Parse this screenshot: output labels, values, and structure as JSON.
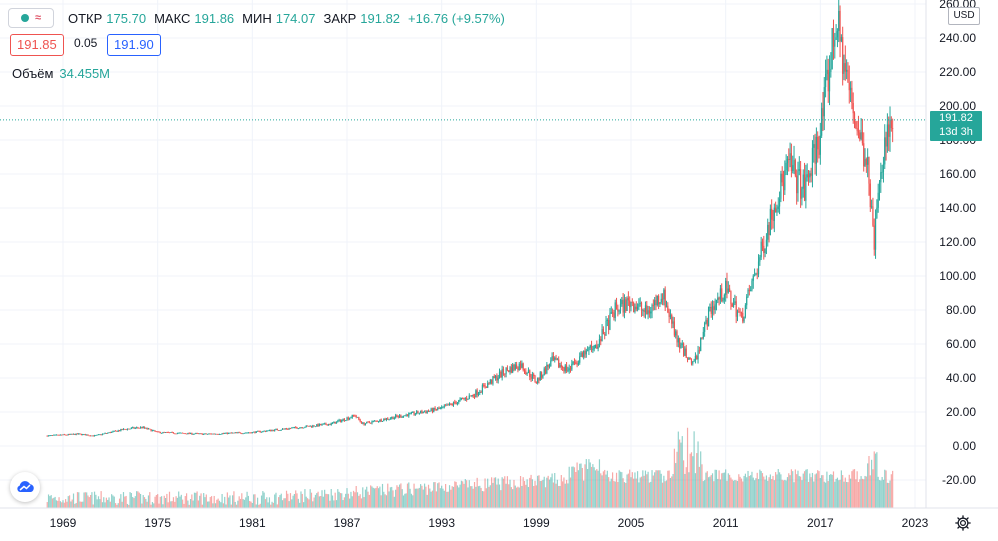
{
  "legend": {
    "open_label": "ОТКР",
    "open": "175.70",
    "high_label": "МАКС",
    "high": "191.86",
    "low_label": "МИН",
    "low": "174.07",
    "close_label": "ЗАКР",
    "close": "191.82",
    "change": "+16.76 (+9.57%)"
  },
  "quote": {
    "bid": "191.85",
    "spread": "0.05",
    "ask": "191.90"
  },
  "volume": {
    "label": "Объём",
    "value": "34.455M"
  },
  "currency": "USD",
  "last_price": {
    "price": "191.82",
    "countdown": "13d 3h"
  },
  "colors": {
    "up": "#26a69a",
    "down": "#ef5350",
    "grid": "#f0f3fa",
    "text": "#131722",
    "last_line": "#26a69a"
  },
  "icons": {
    "logo": "tradingview-cloud-icon",
    "settings": "gear-icon"
  },
  "chart_data": {
    "type": "candlestick",
    "x_ticks": [
      "1969",
      "1975",
      "1981",
      "1987",
      "1993",
      "1999",
      "2005",
      "2011",
      "2017",
      "2023"
    ],
    "y_ticks": [
      "260.00",
      "240.00",
      "220.00",
      "200.00",
      "180.00",
      "160.00",
      "140.00",
      "120.00",
      "100.00",
      "80.00",
      "60.00",
      "40.00",
      "20.00",
      "0.00",
      "-20.00"
    ],
    "ylim": [
      -37,
      262
    ],
    "xlim": [
      1967,
      2024.2
    ],
    "price_path": [
      [
        1968.0,
        6
      ],
      [
        1970.0,
        7
      ],
      [
        1971.0,
        6
      ],
      [
        1973.0,
        10
      ],
      [
        1974.0,
        11
      ],
      [
        1975.0,
        8
      ],
      [
        1978.0,
        7
      ],
      [
        1981.0,
        8
      ],
      [
        1983.0,
        10
      ],
      [
        1986.0,
        13
      ],
      [
        1987.5,
        18
      ],
      [
        1988.0,
        13
      ],
      [
        1990.0,
        17
      ],
      [
        1993.0,
        22
      ],
      [
        1995.0,
        30
      ],
      [
        1997.0,
        44
      ],
      [
        1998.0,
        48
      ],
      [
        1999.0,
        38
      ],
      [
        2000.0,
        50
      ],
      [
        2001.0,
        45
      ],
      [
        2003.0,
        62
      ],
      [
        2004.0,
        80
      ],
      [
        2005.0,
        85
      ],
      [
        2006.0,
        78
      ],
      [
        2007.0,
        90
      ],
      [
        2008.0,
        60
      ],
      [
        2009.0,
        48
      ],
      [
        2010.0,
        80
      ],
      [
        2011.0,
        92
      ],
      [
        2012.0,
        75
      ],
      [
        2013.0,
        105
      ],
      [
        2014.0,
        140
      ],
      [
        2015.0,
        165
      ],
      [
        2016.0,
        150
      ],
      [
        2017.0,
        185
      ],
      [
        2018.0,
        250
      ],
      [
        2019.0,
        200
      ],
      [
        2020.0,
        165
      ],
      [
        2020.4,
        120
      ],
      [
        2021.0,
        175
      ],
      [
        2021.6,
        191.82
      ]
    ],
    "volume_scale_m": "0–70M (approx.)",
    "last_price": 191.82
  }
}
